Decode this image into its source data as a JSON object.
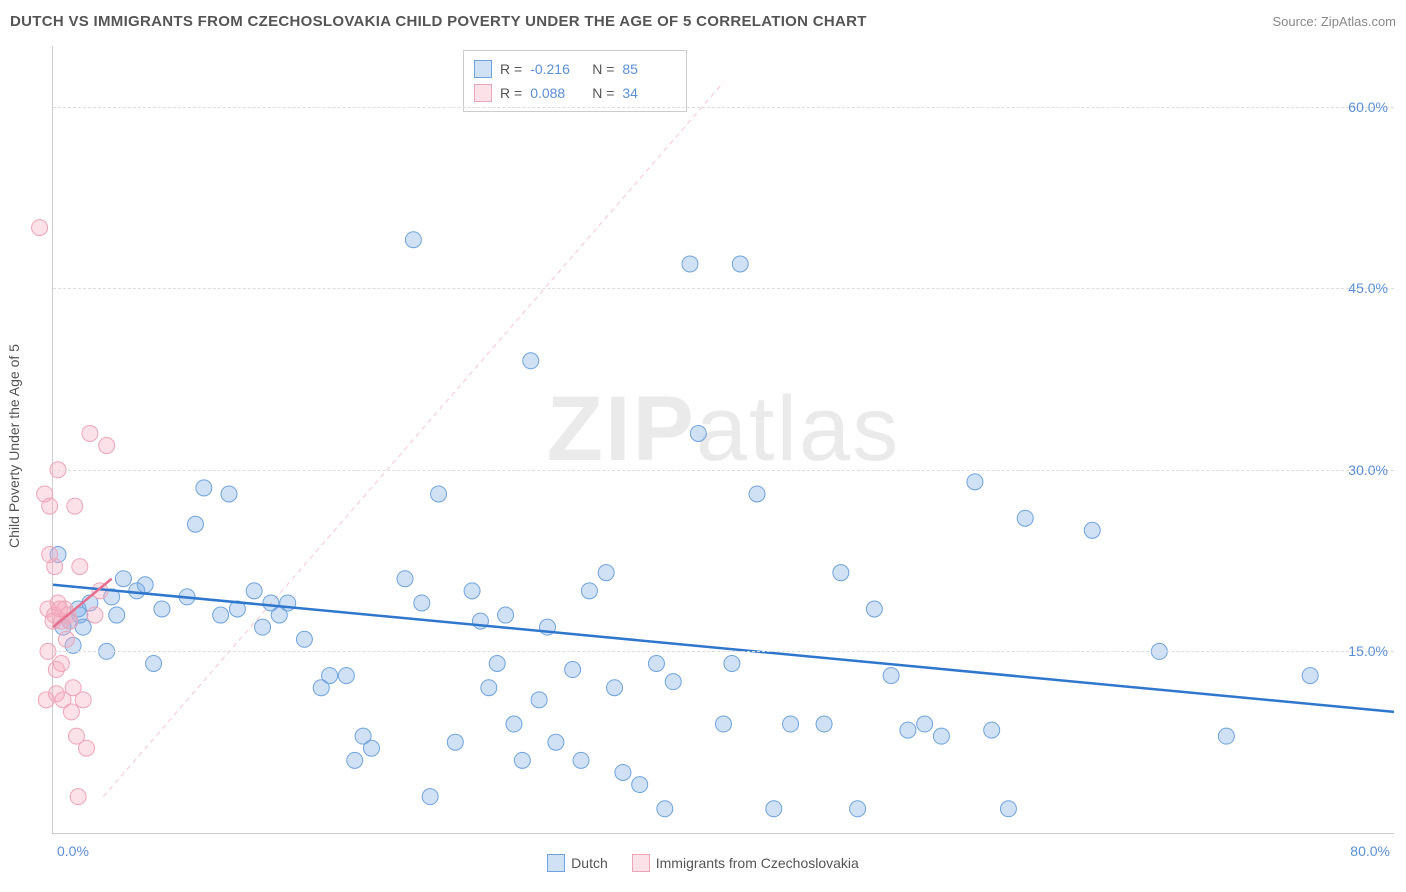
{
  "title": "DUTCH VS IMMIGRANTS FROM CZECHOSLOVAKIA CHILD POVERTY UNDER THE AGE OF 5 CORRELATION CHART",
  "source": "Source: ZipAtlas.com",
  "ylabel": "Child Poverty Under the Age of 5",
  "watermark_bold": "ZIP",
  "watermark_rest": "atlas",
  "chart": {
    "type": "scatter",
    "background_color": "#ffffff",
    "grid_color": "#dddddd",
    "axis_color": "#cccccc",
    "tick_color": "#5b8fd6",
    "xlim": [
      0,
      80
    ],
    "ylim": [
      0,
      65
    ],
    "xticks": [
      {
        "v": 0,
        "label": "0.0%"
      },
      {
        "v": 80,
        "label": "80.0%"
      }
    ],
    "yticks": [
      {
        "v": 15,
        "label": "15.0%"
      },
      {
        "v": 30,
        "label": "30.0%"
      },
      {
        "v": 45,
        "label": "45.0%"
      },
      {
        "v": 60,
        "label": "60.0%"
      }
    ],
    "series": [
      {
        "name": "Dutch",
        "color_fill": "rgba(120,170,230,0.35)",
        "color_stroke": "#6fa3dd",
        "marker_radius": 8,
        "trend": {
          "x1": 0,
          "y1": 20.5,
          "x2": 80,
          "y2": 10.0,
          "stroke": "#2f77cc",
          "width": 2.5,
          "dash": "none"
        },
        "ref_line": {
          "x1": 3,
          "y1": 3,
          "x2": 40,
          "y2": 62,
          "stroke": "rgba(240,160,180,0.6)",
          "width": 1,
          "dash": "5,4"
        },
        "points": [
          [
            0.3,
            23
          ],
          [
            0.6,
            17
          ],
          [
            1.0,
            17.5
          ],
          [
            1.2,
            15.5
          ],
          [
            1.5,
            18.5
          ],
          [
            1.6,
            18
          ],
          [
            1.8,
            17
          ],
          [
            2.2,
            19
          ],
          [
            3.2,
            15
          ],
          [
            3.5,
            19.5
          ],
          [
            3.8,
            18
          ],
          [
            4.2,
            21
          ],
          [
            5,
            20
          ],
          [
            5.5,
            20.5
          ],
          [
            6,
            14
          ],
          [
            6.5,
            18.5
          ],
          [
            8,
            19.5
          ],
          [
            8.5,
            25.5
          ],
          [
            9,
            28.5
          ],
          [
            10,
            18
          ],
          [
            10.5,
            28
          ],
          [
            11,
            18.5
          ],
          [
            12,
            20
          ],
          [
            12.5,
            17
          ],
          [
            13,
            19
          ],
          [
            13.5,
            18
          ],
          [
            14,
            19
          ],
          [
            15,
            16
          ],
          [
            16,
            12
          ],
          [
            16.5,
            13
          ],
          [
            17.5,
            13
          ],
          [
            18,
            6
          ],
          [
            18.5,
            8
          ],
          [
            19,
            7
          ],
          [
            21,
            21
          ],
          [
            21.5,
            49
          ],
          [
            22,
            19
          ],
          [
            22.5,
            3
          ],
          [
            23,
            28
          ],
          [
            24,
            7.5
          ],
          [
            25,
            20
          ],
          [
            25.5,
            17.5
          ],
          [
            26,
            12
          ],
          [
            26.5,
            14
          ],
          [
            27,
            18
          ],
          [
            27.5,
            9
          ],
          [
            28,
            6
          ],
          [
            28.5,
            39
          ],
          [
            29,
            11
          ],
          [
            29.5,
            17
          ],
          [
            30,
            7.5
          ],
          [
            31,
            13.5
          ],
          [
            31.5,
            6
          ],
          [
            32,
            20
          ],
          [
            33,
            21.5
          ],
          [
            33.5,
            12
          ],
          [
            34,
            5
          ],
          [
            35,
            4
          ],
          [
            36,
            14
          ],
          [
            36.5,
            2
          ],
          [
            37,
            12.5
          ],
          [
            38,
            47
          ],
          [
            38.5,
            33
          ],
          [
            40,
            9
          ],
          [
            40.5,
            14
          ],
          [
            41,
            47
          ],
          [
            42,
            28
          ],
          [
            43,
            2
          ],
          [
            44,
            9
          ],
          [
            46,
            9
          ],
          [
            47,
            21.5
          ],
          [
            48,
            2
          ],
          [
            49,
            18.5
          ],
          [
            50,
            13
          ],
          [
            51,
            8.5
          ],
          [
            52,
            9
          ],
          [
            53,
            8
          ],
          [
            55,
            29
          ],
          [
            56,
            8.5
          ],
          [
            57,
            2
          ],
          [
            58,
            26
          ],
          [
            62,
            25
          ],
          [
            66,
            15
          ],
          [
            70,
            8
          ],
          [
            75,
            13
          ]
        ]
      },
      {
        "name": "Immigrants from Czechoslovakia",
        "color_fill": "rgba(245,170,190,0.35)",
        "color_stroke": "#eda5b8",
        "marker_radius": 8,
        "trend": {
          "x1": 0,
          "y1": 17.0,
          "x2": 3.5,
          "y2": 21.0,
          "stroke": "#e66f8f",
          "width": 2.5,
          "dash": "none"
        },
        "points": [
          [
            -0.8,
            50
          ],
          [
            -0.5,
            28
          ],
          [
            -0.4,
            11
          ],
          [
            -0.3,
            15
          ],
          [
            -0.3,
            18.5
          ],
          [
            -0.2,
            23
          ],
          [
            -0.2,
            27
          ],
          [
            0,
            17.5
          ],
          [
            0.1,
            22
          ],
          [
            0.1,
            18
          ],
          [
            0.2,
            13.5
          ],
          [
            0.2,
            11.5
          ],
          [
            0.3,
            19
          ],
          [
            0.3,
            30
          ],
          [
            0.4,
            18.5
          ],
          [
            0.5,
            17.5
          ],
          [
            0.5,
            14
          ],
          [
            0.6,
            11
          ],
          [
            0.7,
            18.5
          ],
          [
            0.8,
            16
          ],
          [
            0.9,
            18
          ],
          [
            1,
            17.5
          ],
          [
            1.1,
            10
          ],
          [
            1.2,
            12
          ],
          [
            1.3,
            27
          ],
          [
            1.4,
            8
          ],
          [
            1.6,
            22
          ],
          [
            1.8,
            11
          ],
          [
            2,
            7
          ],
          [
            2.2,
            33
          ],
          [
            2.5,
            18
          ],
          [
            2.8,
            20
          ],
          [
            3.2,
            32
          ],
          [
            1.5,
            3
          ]
        ]
      }
    ],
    "stats": [
      {
        "swatch_fill": "rgba(120,170,230,0.35)",
        "swatch_stroke": "#6fa3dd",
        "r": "-0.216",
        "n": "85"
      },
      {
        "swatch_fill": "rgba(245,170,190,0.35)",
        "swatch_stroke": "#eda5b8",
        "r": "0.088",
        "n": "34"
      }
    ],
    "legend_bottom": [
      {
        "swatch_fill": "rgba(120,170,230,0.35)",
        "swatch_stroke": "#6fa3dd",
        "label": "Dutch"
      },
      {
        "swatch_fill": "rgba(245,170,190,0.35)",
        "swatch_stroke": "#eda5b8",
        "label": "Immigrants from Czechoslovakia"
      }
    ]
  }
}
